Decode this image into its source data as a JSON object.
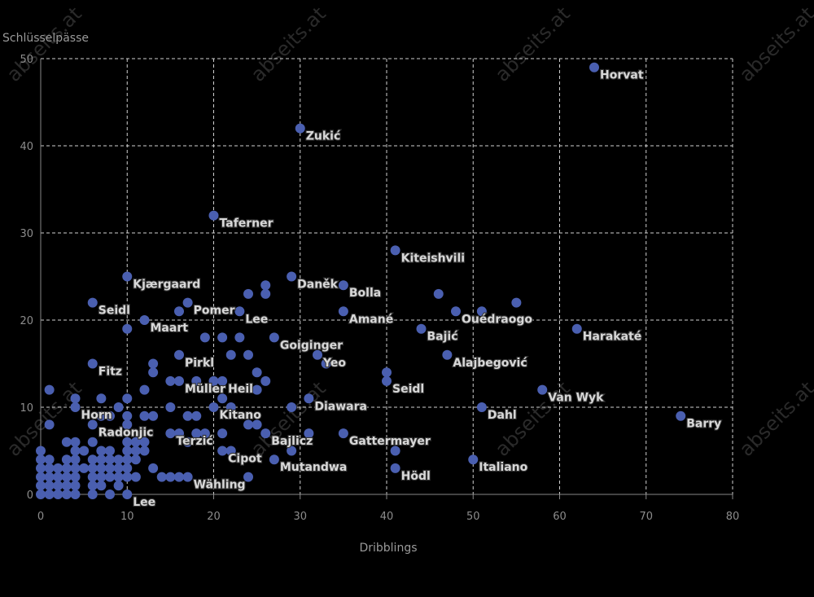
{
  "watermark": "abseits.at",
  "chart_data": {
    "type": "scatter",
    "xlabel": "Dribblings",
    "ylabel": "Schlüsselpässe",
    "xlim": [
      0,
      80
    ],
    "ylim": [
      0,
      50
    ],
    "xticks": [
      0,
      10,
      20,
      30,
      40,
      50,
      60,
      70,
      80
    ],
    "yticks": [
      0,
      10,
      20,
      30,
      40,
      50
    ],
    "grid": true,
    "point_color": "#4a5fb0",
    "points": [
      {
        "x": 64,
        "y": 49,
        "label": "Horvat"
      },
      {
        "x": 30,
        "y": 42,
        "label": "Zukić"
      },
      {
        "x": 20,
        "y": 32,
        "label": "Taferner"
      },
      {
        "x": 41,
        "y": 28,
        "label": "Kiteishvili"
      },
      {
        "x": 10,
        "y": 25,
        "label": "Kjærgaard"
      },
      {
        "x": 29,
        "y": 25,
        "label": "Daněk"
      },
      {
        "x": 35,
        "y": 24,
        "label": "Bolla"
      },
      {
        "x": 6,
        "y": 22,
        "label": "Seidl"
      },
      {
        "x": 17,
        "y": 22,
        "label": "Pomer"
      },
      {
        "x": 23,
        "y": 21,
        "label": "Lee"
      },
      {
        "x": 35,
        "y": 21,
        "label": "Amané"
      },
      {
        "x": 48,
        "y": 21,
        "label": "Ouédraogo"
      },
      {
        "x": 12,
        "y": 20,
        "label": "Maart"
      },
      {
        "x": 44,
        "y": 19,
        "label": "Bajić"
      },
      {
        "x": 62,
        "y": 19,
        "label": "Harakaté"
      },
      {
        "x": 27,
        "y": 18,
        "label": "Goiginger"
      },
      {
        "x": 16,
        "y": 16,
        "label": "Pirkl"
      },
      {
        "x": 32,
        "y": 16,
        "label": "Yeo"
      },
      {
        "x": 47,
        "y": 16,
        "label": "Alajbegović"
      },
      {
        "x": 6,
        "y": 15,
        "label": "Fitz"
      },
      {
        "x": 40,
        "y": 13,
        "label": "Seidl"
      },
      {
        "x": 16,
        "y": 13,
        "label": "Müller"
      },
      {
        "x": 21,
        "y": 13,
        "label": "Heil"
      },
      {
        "x": 58,
        "y": 12,
        "label": "Van Wyk"
      },
      {
        "x": 31,
        "y": 11,
        "label": "Diawara"
      },
      {
        "x": 4,
        "y": 10,
        "label": "Horn"
      },
      {
        "x": 51,
        "y": 10,
        "label": "Dahl"
      },
      {
        "x": 20,
        "y": 10,
        "label": "Kitano"
      },
      {
        "x": 74,
        "y": 9,
        "label": "Barry"
      },
      {
        "x": 6,
        "y": 8,
        "label": "Radonjic"
      },
      {
        "x": 15,
        "y": 7,
        "label": "Terzić"
      },
      {
        "x": 26,
        "y": 7,
        "label": "Bajlicz"
      },
      {
        "x": 35,
        "y": 7,
        "label": "Gattermayer"
      },
      {
        "x": 21,
        "y": 5,
        "label": "Cipot"
      },
      {
        "x": 27,
        "y": 4,
        "label": "Mutandwa"
      },
      {
        "x": 41,
        "y": 3,
        "label": "Hödl"
      },
      {
        "x": 50,
        "y": 4,
        "label": "Italiano"
      },
      {
        "x": 17,
        "y": 2,
        "label": "Wähling"
      },
      {
        "x": 10,
        "y": 0,
        "label": "Lee"
      },
      {
        "x": 46,
        "y": 23,
        "label": ""
      },
      {
        "x": 55,
        "y": 22,
        "label": ""
      },
      {
        "x": 51,
        "y": 21,
        "label": ""
      },
      {
        "x": 26,
        "y": 24,
        "label": ""
      },
      {
        "x": 26,
        "y": 23,
        "label": ""
      },
      {
        "x": 24,
        "y": 23,
        "label": ""
      },
      {
        "x": 16,
        "y": 21,
        "label": ""
      },
      {
        "x": 10,
        "y": 19,
        "label": ""
      },
      {
        "x": 19,
        "y": 18,
        "label": ""
      },
      {
        "x": 21,
        "y": 18,
        "label": ""
      },
      {
        "x": 23,
        "y": 18,
        "label": ""
      },
      {
        "x": 22,
        "y": 16,
        "label": ""
      },
      {
        "x": 24,
        "y": 16,
        "label": ""
      },
      {
        "x": 33,
        "y": 15,
        "label": ""
      },
      {
        "x": 13,
        "y": 15,
        "label": ""
      },
      {
        "x": 13,
        "y": 14,
        "label": ""
      },
      {
        "x": 25,
        "y": 14,
        "label": ""
      },
      {
        "x": 40,
        "y": 14,
        "label": ""
      },
      {
        "x": 15,
        "y": 13,
        "label": ""
      },
      {
        "x": 18,
        "y": 13,
        "label": ""
      },
      {
        "x": 20,
        "y": 13,
        "label": ""
      },
      {
        "x": 26,
        "y": 13,
        "label": ""
      },
      {
        "x": 1,
        "y": 12,
        "label": ""
      },
      {
        "x": 12,
        "y": 12,
        "label": ""
      },
      {
        "x": 25,
        "y": 12,
        "label": ""
      },
      {
        "x": 4,
        "y": 11,
        "label": ""
      },
      {
        "x": 7,
        "y": 11,
        "label": ""
      },
      {
        "x": 10,
        "y": 11,
        "label": ""
      },
      {
        "x": 21,
        "y": 11,
        "label": ""
      },
      {
        "x": 9,
        "y": 10,
        "label": ""
      },
      {
        "x": 15,
        "y": 10,
        "label": ""
      },
      {
        "x": 22,
        "y": 10,
        "label": ""
      },
      {
        "x": 29,
        "y": 10,
        "label": ""
      },
      {
        "x": 7,
        "y": 9,
        "label": ""
      },
      {
        "x": 8,
        "y": 9,
        "label": ""
      },
      {
        "x": 10,
        "y": 9,
        "label": ""
      },
      {
        "x": 12,
        "y": 9,
        "label": ""
      },
      {
        "x": 13,
        "y": 9,
        "label": ""
      },
      {
        "x": 17,
        "y": 9,
        "label": ""
      },
      {
        "x": 18,
        "y": 9,
        "label": ""
      },
      {
        "x": 1,
        "y": 8,
        "label": ""
      },
      {
        "x": 10,
        "y": 8,
        "label": ""
      },
      {
        "x": 24,
        "y": 8,
        "label": ""
      },
      {
        "x": 25,
        "y": 8,
        "label": ""
      },
      {
        "x": 16,
        "y": 7,
        "label": ""
      },
      {
        "x": 18,
        "y": 7,
        "label": ""
      },
      {
        "x": 19,
        "y": 7,
        "label": ""
      },
      {
        "x": 21,
        "y": 7,
        "label": ""
      },
      {
        "x": 31,
        "y": 7,
        "label": ""
      },
      {
        "x": 3,
        "y": 6,
        "label": ""
      },
      {
        "x": 4,
        "y": 6,
        "label": ""
      },
      {
        "x": 6,
        "y": 6,
        "label": ""
      },
      {
        "x": 10,
        "y": 6,
        "label": ""
      },
      {
        "x": 11,
        "y": 6,
        "label": ""
      },
      {
        "x": 12,
        "y": 6,
        "label": ""
      },
      {
        "x": 17,
        "y": 6,
        "label": ""
      },
      {
        "x": 0,
        "y": 5,
        "label": ""
      },
      {
        "x": 4,
        "y": 5,
        "label": ""
      },
      {
        "x": 5,
        "y": 5,
        "label": ""
      },
      {
        "x": 7,
        "y": 5,
        "label": ""
      },
      {
        "x": 8,
        "y": 5,
        "label": ""
      },
      {
        "x": 10,
        "y": 5,
        "label": ""
      },
      {
        "x": 11,
        "y": 5,
        "label": ""
      },
      {
        "x": 12,
        "y": 5,
        "label": ""
      },
      {
        "x": 22,
        "y": 5,
        "label": ""
      },
      {
        "x": 29,
        "y": 5,
        "label": ""
      },
      {
        "x": 41,
        "y": 5,
        "label": ""
      },
      {
        "x": 0,
        "y": 4,
        "label": ""
      },
      {
        "x": 1,
        "y": 4,
        "label": ""
      },
      {
        "x": 3,
        "y": 4,
        "label": ""
      },
      {
        "x": 4,
        "y": 4,
        "label": ""
      },
      {
        "x": 6,
        "y": 4,
        "label": ""
      },
      {
        "x": 7,
        "y": 4,
        "label": ""
      },
      {
        "x": 8,
        "y": 4,
        "label": ""
      },
      {
        "x": 9,
        "y": 4,
        "label": ""
      },
      {
        "x": 10,
        "y": 4,
        "label": ""
      },
      {
        "x": 11,
        "y": 4,
        "label": ""
      },
      {
        "x": 0,
        "y": 3,
        "label": ""
      },
      {
        "x": 1,
        "y": 3,
        "label": ""
      },
      {
        "x": 2,
        "y": 3,
        "label": ""
      },
      {
        "x": 3,
        "y": 3,
        "label": ""
      },
      {
        "x": 4,
        "y": 3,
        "label": ""
      },
      {
        "x": 5,
        "y": 3,
        "label": ""
      },
      {
        "x": 6,
        "y": 3,
        "label": ""
      },
      {
        "x": 7,
        "y": 3,
        "label": ""
      },
      {
        "x": 8,
        "y": 3,
        "label": ""
      },
      {
        "x": 9,
        "y": 3,
        "label": ""
      },
      {
        "x": 10,
        "y": 3,
        "label": ""
      },
      {
        "x": 13,
        "y": 3,
        "label": ""
      },
      {
        "x": 0,
        "y": 2,
        "label": ""
      },
      {
        "x": 1,
        "y": 2,
        "label": ""
      },
      {
        "x": 2,
        "y": 2,
        "label": ""
      },
      {
        "x": 3,
        "y": 2,
        "label": ""
      },
      {
        "x": 4,
        "y": 2,
        "label": ""
      },
      {
        "x": 6,
        "y": 2,
        "label": ""
      },
      {
        "x": 7,
        "y": 2,
        "label": ""
      },
      {
        "x": 8,
        "y": 2,
        "label": ""
      },
      {
        "x": 9,
        "y": 2,
        "label": ""
      },
      {
        "x": 10,
        "y": 2,
        "label": ""
      },
      {
        "x": 11,
        "y": 2,
        "label": ""
      },
      {
        "x": 14,
        "y": 2,
        "label": ""
      },
      {
        "x": 15,
        "y": 2,
        "label": ""
      },
      {
        "x": 16,
        "y": 2,
        "label": ""
      },
      {
        "x": 24,
        "y": 2,
        "label": ""
      },
      {
        "x": 0,
        "y": 1,
        "label": ""
      },
      {
        "x": 1,
        "y": 1,
        "label": ""
      },
      {
        "x": 2,
        "y": 1,
        "label": ""
      },
      {
        "x": 3,
        "y": 1,
        "label": ""
      },
      {
        "x": 4,
        "y": 1,
        "label": ""
      },
      {
        "x": 6,
        "y": 1,
        "label": ""
      },
      {
        "x": 7,
        "y": 1,
        "label": ""
      },
      {
        "x": 9,
        "y": 1,
        "label": ""
      },
      {
        "x": 0,
        "y": 0,
        "label": ""
      },
      {
        "x": 1,
        "y": 0,
        "label": ""
      },
      {
        "x": 2,
        "y": 0,
        "label": ""
      },
      {
        "x": 3,
        "y": 0,
        "label": ""
      },
      {
        "x": 4,
        "y": 0,
        "label": ""
      },
      {
        "x": 6,
        "y": 0,
        "label": ""
      },
      {
        "x": 8,
        "y": 0,
        "label": ""
      }
    ]
  }
}
